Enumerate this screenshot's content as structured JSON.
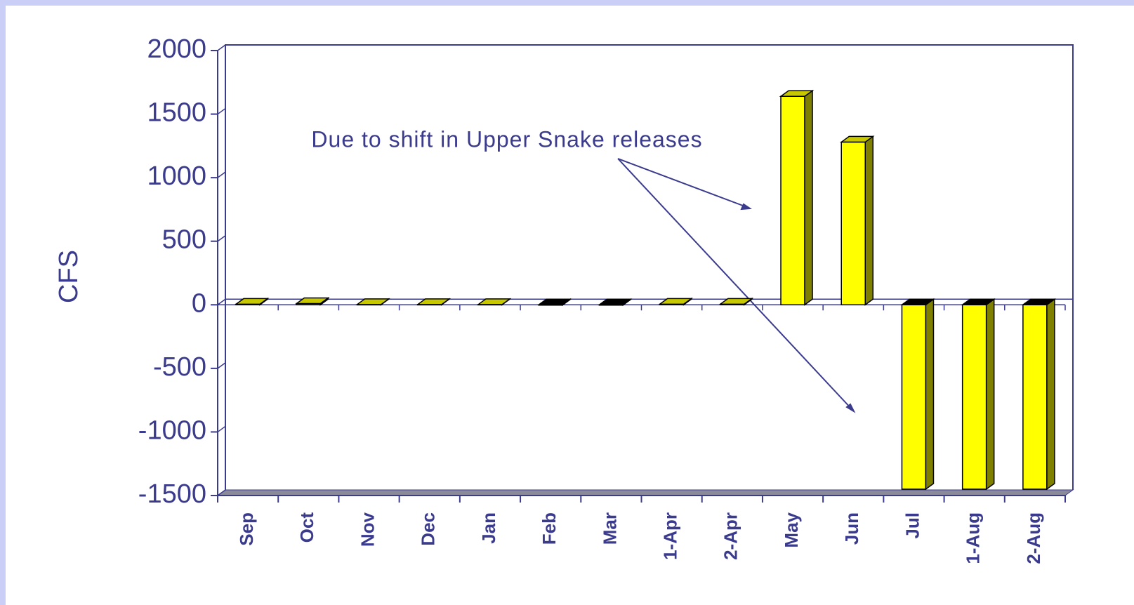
{
  "chart_data": {
    "type": "bar3d",
    "y_label": "CFS",
    "annotation": "Due to shift in Upper Snake releases",
    "categories": [
      "Sep",
      "Oct",
      "Nov",
      "Dec",
      "Jan",
      "Feb",
      "Mar",
      "1-Apr",
      "2-Apr",
      "May",
      "Jun",
      "Jul",
      "1-Aug",
      "2-Aug"
    ],
    "values": [
      5,
      10,
      2,
      2,
      2,
      -2,
      -2,
      5,
      5,
      1640,
      1280,
      -1450,
      -1450,
      -1450
    ],
    "color": "#ffff00",
    "ylim": [
      -1500,
      2000
    ],
    "yticks": [
      -1500,
      -1000,
      -500,
      0,
      500,
      1000,
      1500,
      2000
    ]
  }
}
